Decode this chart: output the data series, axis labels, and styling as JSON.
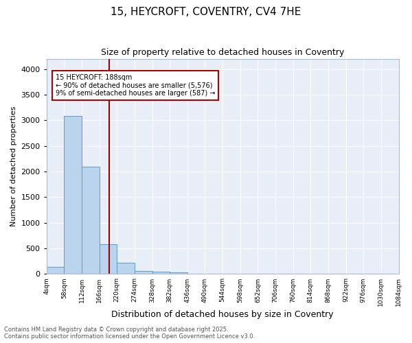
{
  "title_line1": "15, HEYCROFT, COVENTRY, CV4 7HE",
  "title_line2": "Size of property relative to detached houses in Coventry",
  "xlabel": "Distribution of detached houses by size in Coventry",
  "ylabel": "Number of detached properties",
  "bar_color": "#bad4ee",
  "bar_edge_color": "#5b9bd5",
  "background_color": "#e8eef8",
  "grid_color": "#ffffff",
  "annotation_box_color": "#ffffff",
  "annotation_edge_color": "#aa0000",
  "vline_color": "#990000",
  "bins": [
    "4sqm",
    "58sqm",
    "112sqm",
    "166sqm",
    "220sqm",
    "274sqm",
    "328sqm",
    "382sqm",
    "436sqm",
    "490sqm",
    "544sqm",
    "598sqm",
    "652sqm",
    "706sqm",
    "760sqm",
    "814sqm",
    "868sqm",
    "922sqm",
    "976sqm",
    "1030sqm",
    "1084sqm"
  ],
  "bar_heights": [
    140,
    3080,
    2090,
    575,
    215,
    65,
    48,
    35,
    0,
    0,
    0,
    0,
    0,
    0,
    0,
    0,
    0,
    0,
    0,
    0
  ],
  "ylim": [
    0,
    4200
  ],
  "yticks": [
    0,
    500,
    1000,
    1500,
    2000,
    2500,
    3000,
    3500,
    4000
  ],
  "vline_x_bar_index": 3.55,
  "annotation_text": "15 HEYCROFT: 188sqm\n← 90% of detached houses are smaller (5,576)\n9% of semi-detached houses are larger (587) →",
  "footer_line1": "Contains HM Land Registry data © Crown copyright and database right 2025.",
  "footer_line2": "Contains public sector information licensed under the Open Government Licence v3.0.",
  "figsize": [
    6.0,
    5.0
  ],
  "dpi": 100
}
